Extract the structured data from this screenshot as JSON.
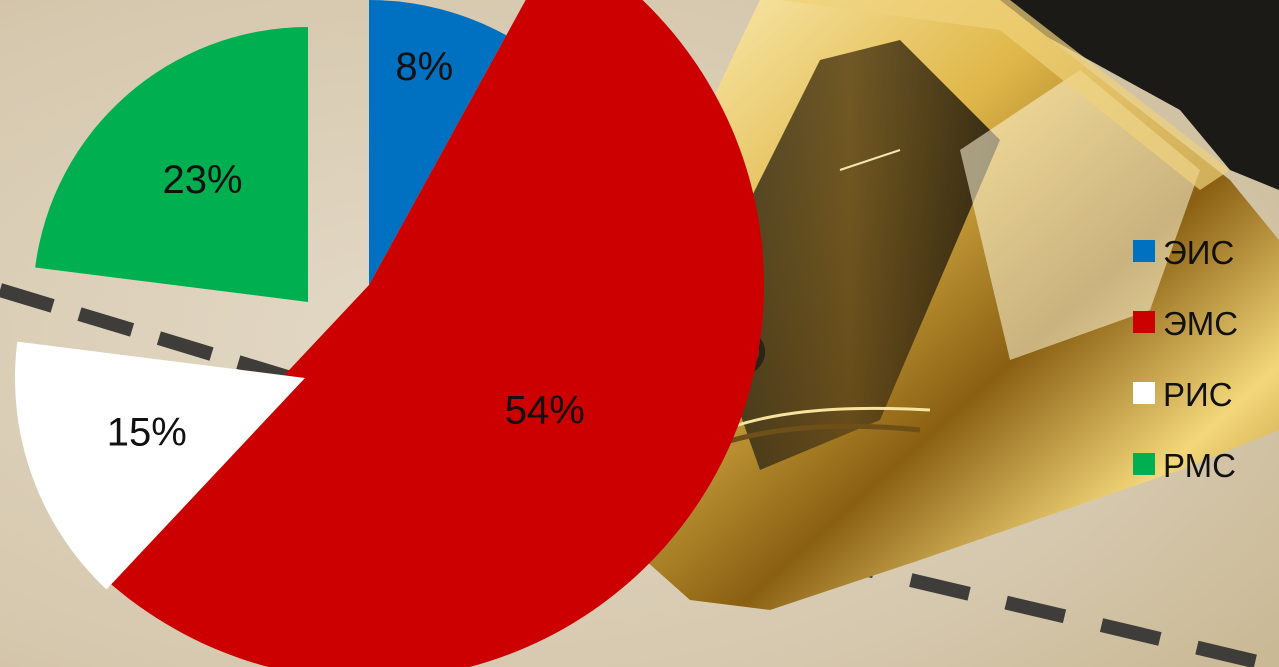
{
  "chart_data": {
    "type": "pie",
    "title": "",
    "exploded": true,
    "start_angle_deg": 0,
    "direction": "clockwise",
    "slices": [
      {
        "name": "ЭИС",
        "value": 8,
        "label": "8%",
        "color": "#0070c0"
      },
      {
        "name": "ЭМС",
        "value": 54,
        "label": "54%",
        "color": "#cc0000"
      },
      {
        "name": "РИС",
        "value": 15,
        "label": "15%",
        "color": "#ffffff"
      },
      {
        "name": "РМС",
        "value": 23,
        "label": "23%",
        "color": "#00b050"
      }
    ],
    "legend": {
      "position": "right"
    }
  },
  "background": {
    "description_icon": "fountain-pen-nib",
    "colors": {
      "paper": "#d9cdb6",
      "gold": "#d8b347",
      "dash": "#3b3a3a"
    }
  }
}
